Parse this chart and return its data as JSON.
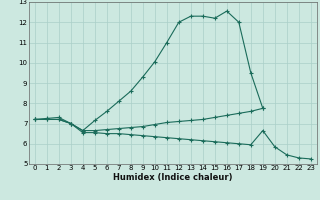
{
  "xlabel": "Humidex (Indice chaleur)",
  "bg_color": "#cce8e0",
  "grid_color": "#aacfc8",
  "line_color": "#1a6b5a",
  "xlim": [
    -0.5,
    23.5
  ],
  "ylim": [
    5,
    13
  ],
  "xticks": [
    0,
    1,
    2,
    3,
    4,
    5,
    6,
    7,
    8,
    9,
    10,
    11,
    12,
    13,
    14,
    15,
    16,
    17,
    18,
    19,
    20,
    21,
    22,
    23
  ],
  "yticks": [
    5,
    6,
    7,
    8,
    9,
    10,
    11,
    12,
    13
  ],
  "series": [
    {
      "x": [
        0,
        1,
        2,
        3,
        4,
        5,
        6,
        7,
        8,
        9,
        10,
        11,
        12,
        13,
        14,
        15,
        16,
        17,
        18,
        19
      ],
      "y": [
        7.2,
        7.25,
        7.3,
        7.0,
        6.65,
        7.15,
        7.6,
        8.1,
        8.6,
        9.3,
        10.05,
        11.0,
        12.0,
        12.3,
        12.3,
        12.2,
        12.55,
        12.0,
        9.5,
        7.75
      ]
    },
    {
      "x": [
        0,
        1,
        2,
        3,
        4,
        5,
        6,
        7,
        8,
        9,
        10,
        11,
        12,
        13,
        14,
        15,
        16,
        17,
        18,
        19
      ],
      "y": [
        7.2,
        7.2,
        7.2,
        7.0,
        6.65,
        6.65,
        6.7,
        6.75,
        6.8,
        6.85,
        6.95,
        7.05,
        7.1,
        7.15,
        7.2,
        7.3,
        7.4,
        7.5,
        7.6,
        7.75
      ]
    },
    {
      "x": [
        0,
        1,
        2,
        3,
        4,
        5,
        6,
        7,
        8,
        9,
        10,
        11,
        12,
        13,
        14,
        15,
        16,
        17,
        18,
        19,
        20,
        21,
        22,
        23
      ],
      "y": [
        7.2,
        7.2,
        7.2,
        7.0,
        6.55,
        6.55,
        6.5,
        6.5,
        6.45,
        6.4,
        6.35,
        6.3,
        6.25,
        6.2,
        6.15,
        6.1,
        6.05,
        6.0,
        5.95,
        6.65,
        5.85,
        5.45,
        5.3,
        5.25
      ]
    }
  ]
}
